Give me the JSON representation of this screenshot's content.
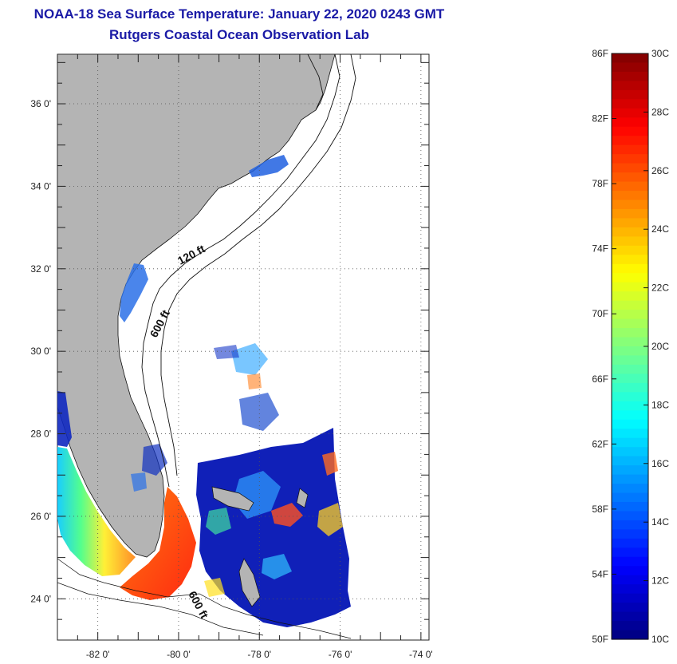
{
  "title": {
    "line1": "NOAA-18 Sea Surface Temperature:  January 22, 2020 0243 GMT",
    "line2": "Rutgers Coastal Ocean Observation Lab"
  },
  "map": {
    "lat_ticks": [
      {
        "value": 36,
        "label": "36 0'"
      },
      {
        "value": 34,
        "label": "34 0'"
      },
      {
        "value": 32,
        "label": "32 0'"
      },
      {
        "value": 30,
        "label": "30 0'"
      },
      {
        "value": 28,
        "label": "28 0'"
      },
      {
        "value": 26,
        "label": "26 0'"
      },
      {
        "value": 24,
        "label": "24 0'"
      }
    ],
    "lon_ticks": [
      {
        "value": -82,
        "label": "-82 0'"
      },
      {
        "value": -80,
        "label": "-80 0'"
      },
      {
        "value": -78,
        "label": "-78 0'"
      },
      {
        "value": -76,
        "label": "-76 0'"
      },
      {
        "value": -74,
        "label": "-74 0'"
      }
    ],
    "lat_range": [
      23,
      37.2
    ],
    "lon_range": [
      -83,
      -73.8
    ],
    "contour_labels": [
      "120 ft",
      "600 ft",
      "600 ft"
    ],
    "colors": {
      "land": "#b4b4b4",
      "cold_water": "#1010c8",
      "warm_water": "#ff3a10"
    }
  },
  "colorbar": {
    "f_labels": [
      "86F",
      "82F",
      "78F",
      "74F",
      "70F",
      "66F",
      "62F",
      "58F",
      "54F",
      "50F"
    ],
    "c_labels": [
      "30C",
      "28C",
      "26C",
      "24C",
      "22C",
      "20C",
      "18C",
      "16C",
      "14C",
      "12C",
      "10C"
    ],
    "range_c": [
      10,
      30
    ],
    "range_f": [
      50,
      86
    ],
    "colormap": "jet"
  }
}
